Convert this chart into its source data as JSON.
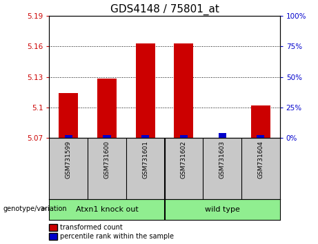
{
  "title": "GDS4148 / 75801_at",
  "samples": [
    "GSM731599",
    "GSM731600",
    "GSM731601",
    "GSM731602",
    "GSM731603",
    "GSM731604"
  ],
  "red_values": [
    5.114,
    5.128,
    5.163,
    5.163,
    5.07,
    5.102
  ],
  "blue_values": [
    2,
    2,
    2,
    2,
    4,
    2
  ],
  "y_min": 5.07,
  "y_max": 5.19,
  "y_ticks": [
    5.07,
    5.1,
    5.13,
    5.16,
    5.19
  ],
  "y2_ticks": [
    0,
    25,
    50,
    75,
    100
  ],
  "group_labels": [
    "Atxn1 knock out",
    "wild type"
  ],
  "group_color": "#90EE90",
  "bar_color_red": "#CC0000",
  "bar_color_blue": "#0000CC",
  "title_fontsize": 11,
  "tick_fontsize": 7.5,
  "background_plot": "#FFFFFF",
  "background_sample": "#C8C8C8",
  "left_ylabel_color": "#CC0000",
  "right_ylabel_color": "#0000CC"
}
